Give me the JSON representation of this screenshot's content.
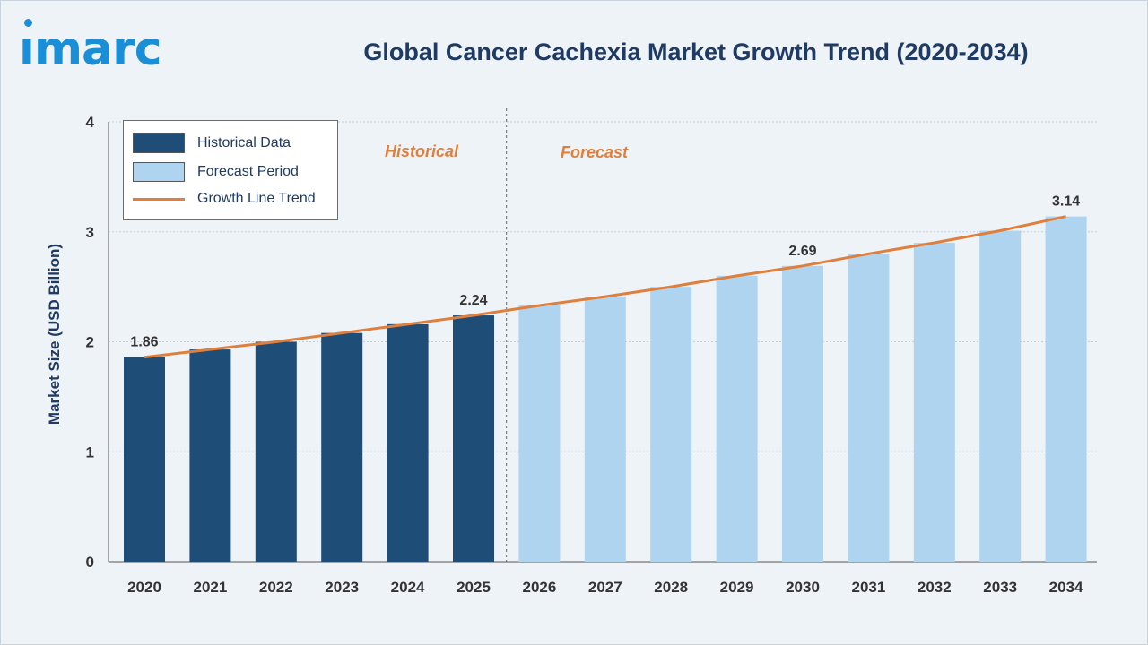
{
  "logo": {
    "text": "ımarc"
  },
  "title": "Global Cancer Cachexia Market Growth Trend (2020-2034)",
  "legend": {
    "historical": "Historical Data",
    "forecast": "Forecast Period",
    "trend": "Growth Line Trend"
  },
  "period_labels": {
    "historical": "Historical",
    "forecast": "Forecast"
  },
  "colors": {
    "historical": "#1e4d78",
    "forecast": "#aed4ef",
    "trend": "#e07f3c",
    "title": "#1f3b63",
    "logo": "#1a8fd8"
  },
  "chart_data": {
    "type": "bar",
    "title": "Global Cancer Cachexia Market Growth Trend (2020-2034)",
    "ylabel": "Market Size (USD Billion)",
    "xlabel": "",
    "ylim": [
      0,
      4
    ],
    "yticks": [
      0,
      1,
      2,
      3,
      4
    ],
    "grid": true,
    "legend_position": "top-left",
    "categories": [
      "2020",
      "2021",
      "2022",
      "2023",
      "2024",
      "2025",
      "2026",
      "2027",
      "2028",
      "2029",
      "2030",
      "2031",
      "2032",
      "2033",
      "2034"
    ],
    "values": [
      1.86,
      1.93,
      2.0,
      2.08,
      2.16,
      2.24,
      2.33,
      2.41,
      2.5,
      2.6,
      2.69,
      2.8,
      2.9,
      3.01,
      3.14
    ],
    "period": [
      "historical",
      "historical",
      "historical",
      "historical",
      "historical",
      "historical",
      "forecast",
      "forecast",
      "forecast",
      "forecast",
      "forecast",
      "forecast",
      "forecast",
      "forecast",
      "forecast"
    ],
    "data_labels": [
      {
        "category": "2020",
        "text": "1.86"
      },
      {
        "category": "2025",
        "text": "2.24"
      },
      {
        "category": "2030",
        "text": "2.69"
      },
      {
        "category": "2034",
        "text": "3.14"
      }
    ],
    "series": [
      {
        "name": "Historical Data",
        "kind": "bar"
      },
      {
        "name": "Forecast Period",
        "kind": "bar"
      },
      {
        "name": "Growth Line Trend",
        "kind": "line"
      }
    ]
  }
}
